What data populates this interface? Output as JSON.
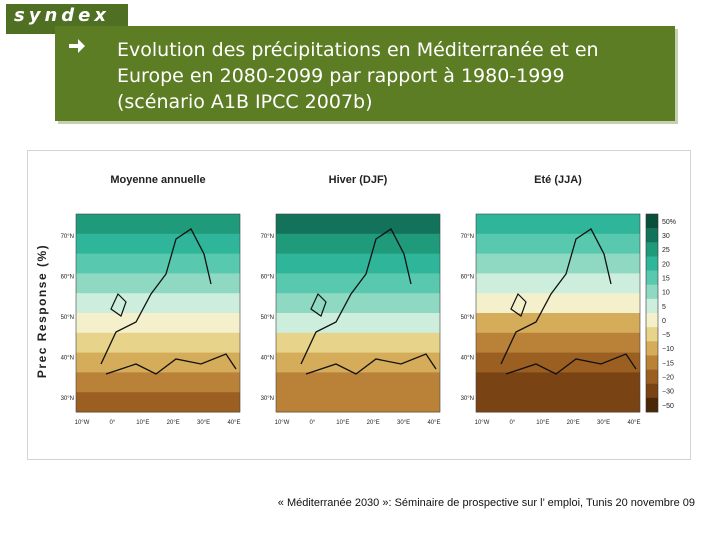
{
  "logo": {
    "text": "syndex",
    "subtitle": ""
  },
  "title": {
    "lines": [
      "Evolution des précipitations en Méditerranée et en",
      "Europe en 2080-2099 par rapport à 1980-1999",
      "(scénario A1B IPCC 2007b)"
    ],
    "bullet_icon": "right-arrow-icon"
  },
  "figure": {
    "y_axis_label": "Prec Response (%)",
    "panels": [
      {
        "title": "Moyenne annuelle"
      },
      {
        "title": "Hiver (DJF)"
      },
      {
        "title": "Eté (JJA)"
      }
    ],
    "lat_ticks": [
      "70°N",
      "60°N",
      "50°N",
      "40°N",
      "30°N"
    ],
    "lon_ticks": [
      "10°W",
      "0°",
      "10°E",
      "20°E",
      "30°E",
      "40°E"
    ],
    "colorbar": {
      "labels": [
        "50%",
        "30",
        "25",
        "20",
        "15",
        "10",
        "5",
        "0",
        "−5",
        "−10",
        "−15",
        "−20",
        "−30",
        "−50"
      ],
      "colors": [
        "#0a4f3a",
        "#12735a",
        "#1f9a7a",
        "#2fb59a",
        "#58c9ae",
        "#8fd9c2",
        "#cdeedd",
        "#f4f0cc",
        "#e7d38a",
        "#d5ac5a",
        "#b98238",
        "#9b5f22",
        "#7a4314",
        "#4a2709"
      ]
    }
  },
  "footer": {
    "text": "« Méditerranée 2030 »: Séminaire de prospective sur l’ emploi, Tunis 20 novembre 09"
  }
}
